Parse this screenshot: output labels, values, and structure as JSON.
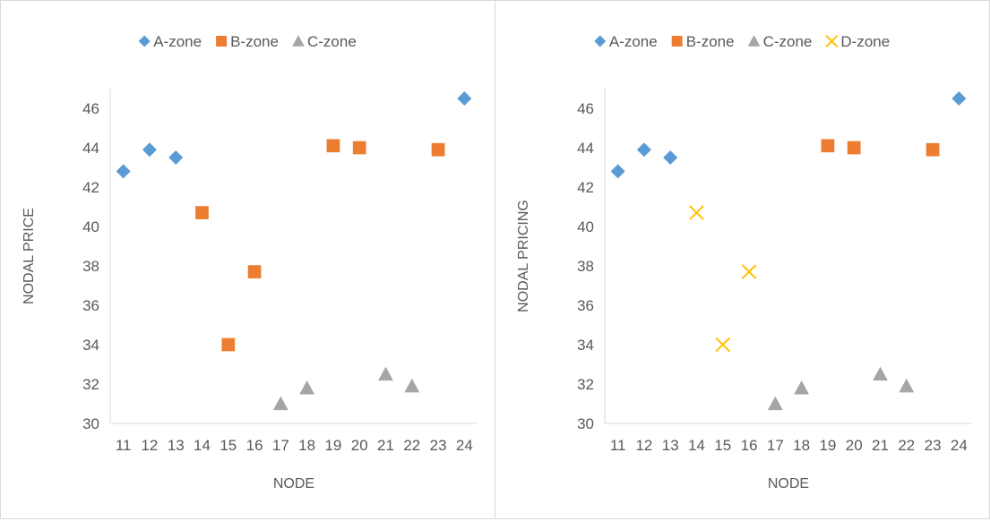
{
  "chart_data": [
    {
      "type": "scatter",
      "title": "",
      "xlabel": "NODE",
      "ylabel": "NODAL PRICE",
      "x": [
        11,
        12,
        13,
        14,
        15,
        16,
        17,
        18,
        19,
        20,
        21,
        22,
        23,
        24
      ],
      "ylim": [
        30,
        47
      ],
      "yticks": [
        30,
        32,
        34,
        36,
        38,
        40,
        42,
        44,
        46
      ],
      "grid": false,
      "legend": "top",
      "series": [
        {
          "name": "A-zone",
          "marker": "diamond",
          "color": "#5b9bd5",
          "points": [
            [
              11,
              42.8
            ],
            [
              12,
              43.9
            ],
            [
              13,
              43.5
            ],
            [
              24,
              46.5
            ]
          ]
        },
        {
          "name": "B-zone",
          "marker": "square",
          "color": "#ed7d31",
          "points": [
            [
              14,
              40.7
            ],
            [
              15,
              34.0
            ],
            [
              16,
              37.7
            ],
            [
              19,
              44.1
            ],
            [
              20,
              44.0
            ],
            [
              23,
              43.9
            ]
          ]
        },
        {
          "name": "C-zone",
          "marker": "triangle",
          "color": "#a5a5a5",
          "points": [
            [
              17,
              31.0
            ],
            [
              18,
              31.8
            ],
            [
              21,
              32.5
            ],
            [
              22,
              31.9
            ]
          ]
        }
      ]
    },
    {
      "type": "scatter",
      "title": "",
      "xlabel": "NODE",
      "ylabel": "NODAL PRICING",
      "x": [
        11,
        12,
        13,
        14,
        15,
        16,
        17,
        18,
        19,
        20,
        21,
        22,
        23,
        24
      ],
      "ylim": [
        30,
        47
      ],
      "yticks": [
        30,
        32,
        34,
        36,
        38,
        40,
        42,
        44,
        46
      ],
      "grid": false,
      "legend": "top",
      "series": [
        {
          "name": "A-zone",
          "marker": "diamond",
          "color": "#5b9bd5",
          "points": [
            [
              11,
              42.8
            ],
            [
              12,
              43.9
            ],
            [
              13,
              43.5
            ],
            [
              24,
              46.5
            ]
          ]
        },
        {
          "name": "B-zone",
          "marker": "square",
          "color": "#ed7d31",
          "points": [
            [
              19,
              44.1
            ],
            [
              20,
              44.0
            ],
            [
              23,
              43.9
            ]
          ]
        },
        {
          "name": "C-zone",
          "marker": "triangle",
          "color": "#a5a5a5",
          "points": [
            [
              17,
              31.0
            ],
            [
              18,
              31.8
            ],
            [
              21,
              32.5
            ],
            [
              22,
              31.9
            ]
          ]
        },
        {
          "name": "D-zone",
          "marker": "x",
          "color": "#ffc000",
          "points": [
            [
              14,
              40.7
            ],
            [
              15,
              34.0
            ],
            [
              16,
              37.7
            ]
          ]
        }
      ]
    }
  ]
}
